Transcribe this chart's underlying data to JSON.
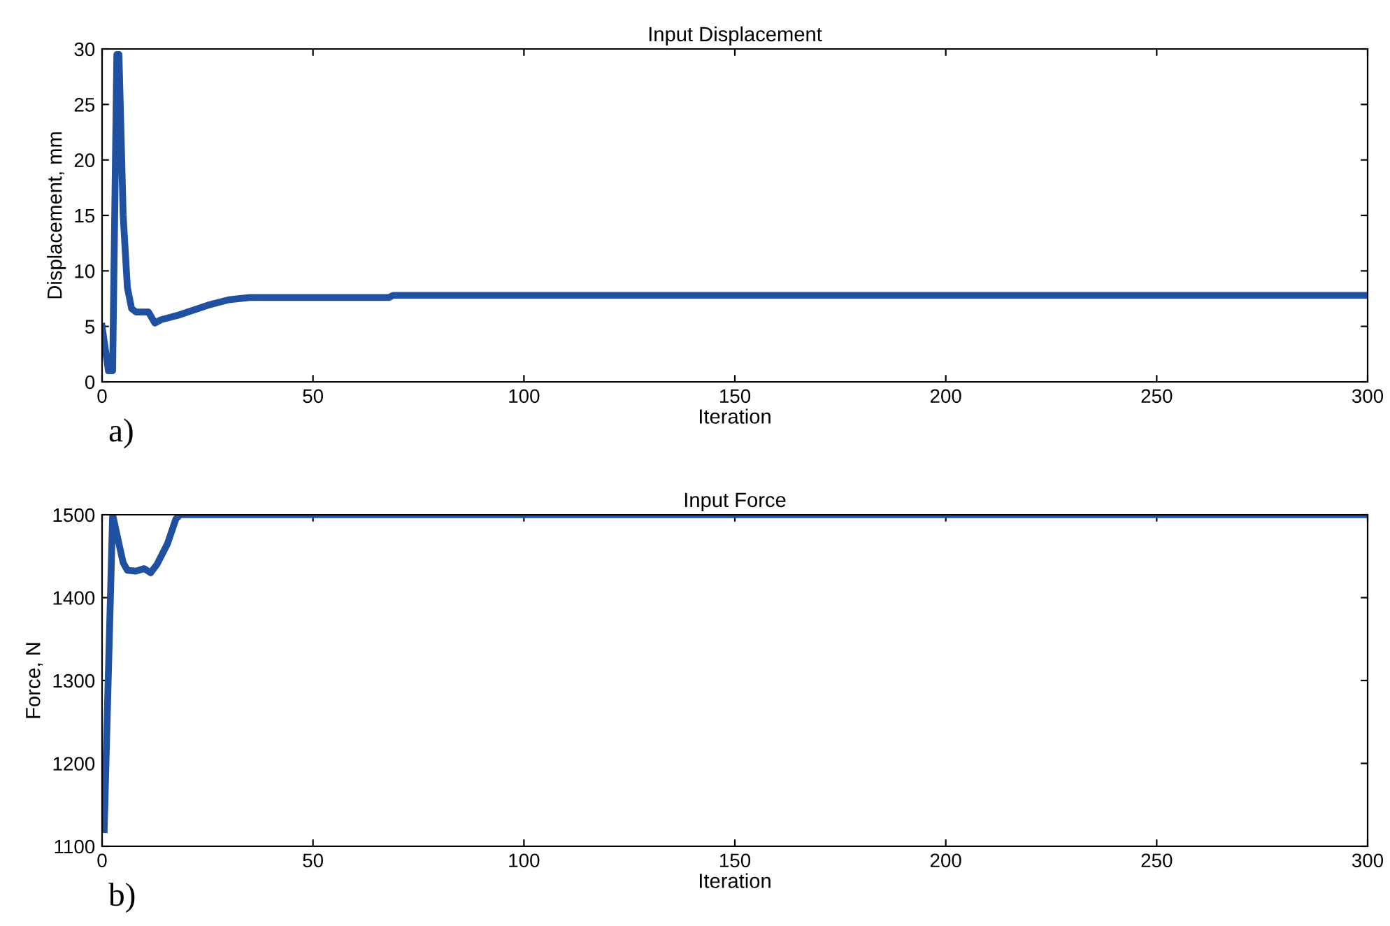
{
  "chart_data": [
    {
      "type": "line",
      "title": "Input Displacement",
      "xlabel": "Iteration",
      "ylabel": "Displacement, mm",
      "annotations": [
        "a)"
      ],
      "series": [
        {
          "color": "#2050a0",
          "x": [
            0,
            1.5,
            2.5,
            3.5,
            4,
            5,
            6,
            7,
            8,
            11,
            12.5,
            14,
            18,
            25,
            30,
            35,
            68,
            69,
            300
          ],
          "values": [
            5,
            1,
            1,
            29.5,
            29.5,
            15,
            8.5,
            6.6,
            6.3,
            6.3,
            5.3,
            5.6,
            6.0,
            6.9,
            7.4,
            7.6,
            7.6,
            7.8,
            7.8
          ]
        }
      ],
      "xlim": [
        0,
        300
      ],
      "xticks": [
        0,
        50,
        100,
        150,
        200,
        250,
        300
      ],
      "ylim": [
        0,
        30
      ],
      "yticks": [
        0,
        5,
        10,
        15,
        20,
        25,
        30
      ],
      "grid": false,
      "legend": false,
      "marker": "none",
      "line_style": "solid"
    },
    {
      "type": "line",
      "title": "Input Force",
      "xlabel": "Iteration",
      "ylabel": "Force, N",
      "annotations": [
        "b)"
      ],
      "series": [
        {
          "color": "#2050a0",
          "x": [
            0.5,
            2.5,
            4,
            5,
            6,
            8,
            10,
            11.5,
            13,
            15.5,
            17.5,
            18.5,
            300
          ],
          "values": [
            1120,
            1500,
            1465,
            1442,
            1433,
            1432,
            1435,
            1430,
            1440,
            1465,
            1495,
            1500,
            1500
          ]
        }
      ],
      "xlim": [
        0,
        300
      ],
      "xticks": [
        0,
        50,
        100,
        150,
        200,
        250,
        300
      ],
      "ylim": [
        1100,
        1500
      ],
      "yticks": [
        1100,
        1200,
        1300,
        1400,
        1500
      ],
      "grid": false,
      "legend": false,
      "marker": "none",
      "line_style": "solid"
    }
  ]
}
